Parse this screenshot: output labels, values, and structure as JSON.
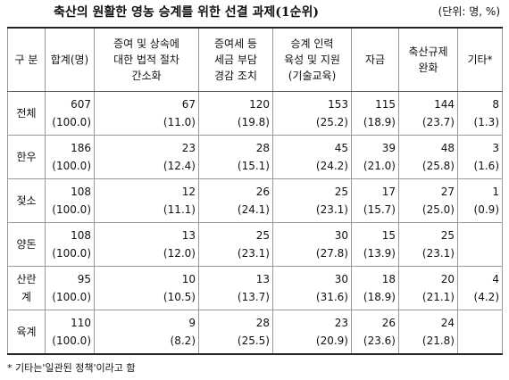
{
  "title": "축산의 원활한 영농 승계를 위한 선결 과제(1순위)",
  "unit": "(단위: 명, %)",
  "table": {
    "header": [
      [
        "구 분"
      ],
      [
        "합계(명)"
      ],
      [
        "증여 및 상속에",
        "대한 법적 절차",
        "간소화"
      ],
      [
        "증여세 등",
        "세금 부담",
        "경감 조치"
      ],
      [
        "승계 인력",
        "육성 및 지원",
        "(기술교육)"
      ],
      [
        "자금"
      ],
      [
        "축산규제",
        "완화"
      ],
      [
        "기타*"
      ]
    ],
    "rows": [
      {
        "label": "전체",
        "cells": [
          [
            "607",
            "(100.0)"
          ],
          [
            "67",
            "(11.0)"
          ],
          [
            "120",
            "(19.8)"
          ],
          [
            "153",
            "(25.2)"
          ],
          [
            "115",
            "(18.9)"
          ],
          [
            "144",
            "(23.7)"
          ],
          [
            "8",
            "(1.3)"
          ]
        ]
      },
      {
        "label": "한우",
        "cells": [
          [
            "186",
            "(100.0)"
          ],
          [
            "23",
            "(12.4)"
          ],
          [
            "28",
            "(15.1)"
          ],
          [
            "45",
            "(24.2)"
          ],
          [
            "39",
            "(21.0)"
          ],
          [
            "48",
            "(25.8)"
          ],
          [
            "3",
            "(1.6)"
          ]
        ]
      },
      {
        "label": "젖소",
        "cells": [
          [
            "108",
            "(100.0)"
          ],
          [
            "12",
            "(11.1)"
          ],
          [
            "26",
            "(24.1)"
          ],
          [
            "25",
            "(23.1)"
          ],
          [
            "17",
            "(15.7)"
          ],
          [
            "27",
            "(25.0)"
          ],
          [
            "1",
            "(0.9)"
          ]
        ]
      },
      {
        "label": "양돈",
        "cells": [
          [
            "108",
            "(100.0)"
          ],
          [
            "13",
            "(12.0)"
          ],
          [
            "25",
            "(23.1)"
          ],
          [
            "30",
            "(27.8)"
          ],
          [
            "15",
            "(13.9)"
          ],
          [
            "25",
            "(23.1)"
          ],
          null
        ]
      },
      {
        "label": "산란계",
        "cells": [
          [
            "95",
            "(100.0)"
          ],
          [
            "10",
            "(10.5)"
          ],
          [
            "13",
            "(13.7)"
          ],
          [
            "30",
            "(31.6)"
          ],
          [
            "18",
            "(18.9)"
          ],
          [
            "20",
            "(21.1)"
          ],
          [
            "4",
            "(4.2)"
          ]
        ]
      },
      {
        "label": "육계",
        "cells": [
          [
            "110",
            "(100.0)"
          ],
          [
            "9",
            "(8.2)"
          ],
          [
            "28",
            "(25.5)"
          ],
          [
            "23",
            "(20.9)"
          ],
          [
            "26",
            "(23.6)"
          ],
          [
            "24",
            "(21.8)"
          ],
          null
        ]
      }
    ]
  },
  "footnote": "* 기타는'일관된 정책'이라고 함"
}
